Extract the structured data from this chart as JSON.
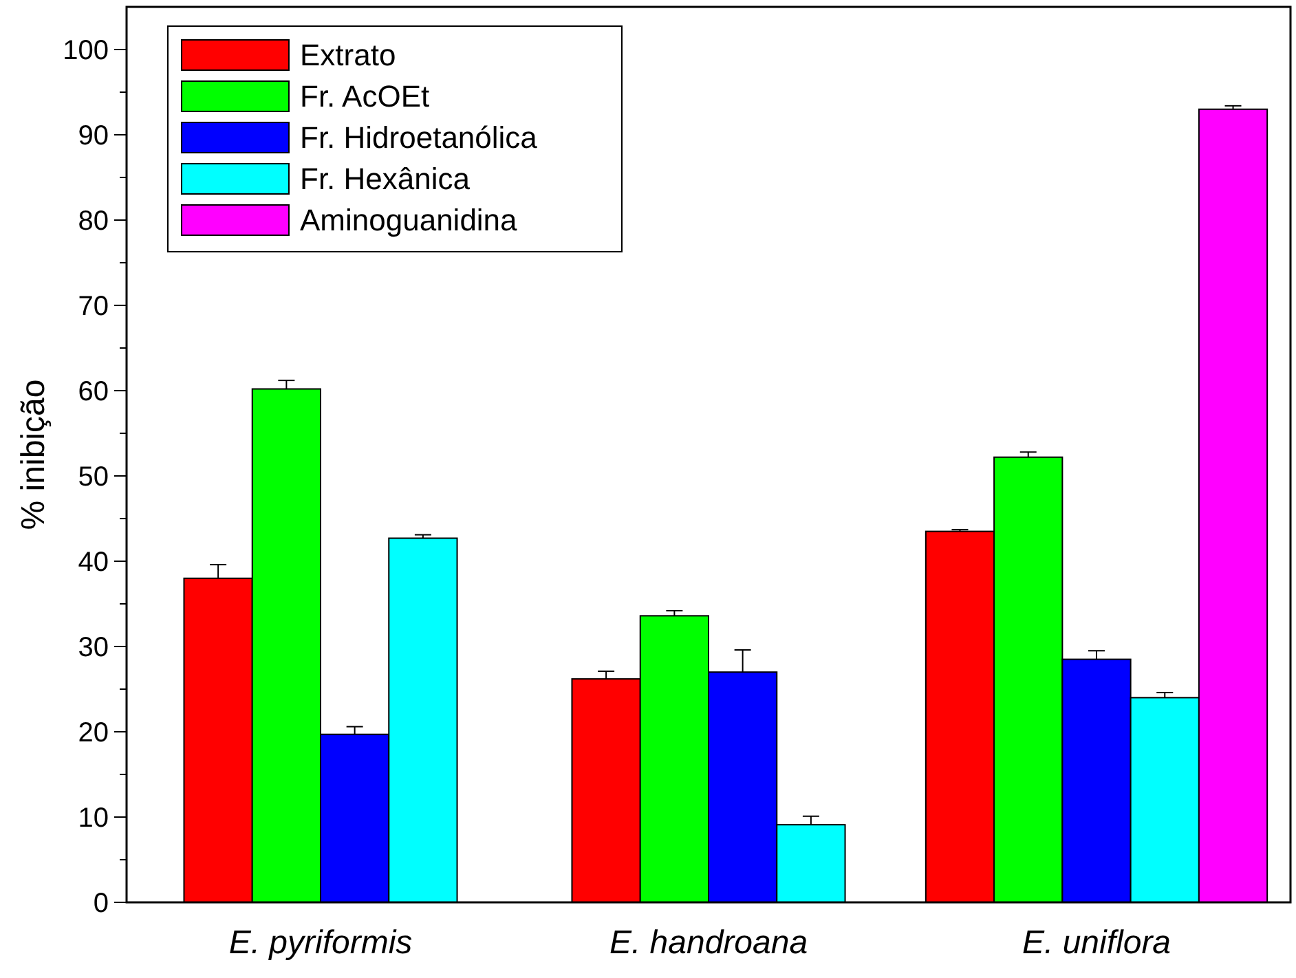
{
  "chart_data": {
    "type": "bar",
    "ylabel": "% inibição",
    "categories": [
      "E. pyriformis",
      "E. handroana",
      "E. uniflora"
    ],
    "series": [
      {
        "name": "Extrato",
        "color": "#ff0000",
        "values": [
          38,
          26.2,
          43.5
        ],
        "errors": [
          [
            38,
            39.6
          ],
          [
            26.2,
            27.1
          ],
          [
            43.5,
            43.7
          ]
        ]
      },
      {
        "name": "Fr. AcOEt",
        "color": "#00ff00",
        "values": [
          60.2,
          33.6,
          52.2
        ],
        "errors": [
          [
            60.2,
            61.2
          ],
          [
            33.6,
            34.2
          ],
          [
            52.2,
            52.8
          ]
        ]
      },
      {
        "name": "Fr. Hidroetanólica",
        "color": "#0000ff",
        "values": [
          19.7,
          27,
          28.5
        ],
        "errors": [
          [
            19.7,
            20.6
          ],
          [
            27,
            29.6
          ],
          [
            28.5,
            29.5
          ]
        ]
      },
      {
        "name": "Fr. Hexânica",
        "color": "#00ffff",
        "values": [
          42.7,
          9.1,
          24
        ],
        "errors": [
          [
            42.7,
            43.1
          ],
          [
            9.1,
            10.1
          ],
          [
            24,
            24.6
          ]
        ]
      },
      {
        "name": "Aminoguanidina",
        "color": "#ff00ff",
        "values": [
          null,
          null,
          93
        ],
        "errors": [
          null,
          null,
          [
            93,
            93.4
          ]
        ]
      }
    ],
    "ylim": [
      0,
      105
    ],
    "yticks": [
      0,
      {
        "value": 5,
        "label": null
      },
      10,
      {
        "value": 15,
        "label": null
      },
      20,
      {
        "value": 25,
        "label": null
      },
      30,
      {
        "value": 35,
        "label": null
      },
      40,
      {
        "value": 45,
        "label": null
      },
      50,
      {
        "value": 55,
        "label": null
      },
      60,
      {
        "value": 65,
        "label": null
      },
      70,
      {
        "value": 75,
        "label": null
      },
      80,
      {
        "value": 85,
        "label": null
      },
      90,
      {
        "value": 95,
        "label": null
      },
      100
    ],
    "legend": "top left",
    "grid": false
  }
}
